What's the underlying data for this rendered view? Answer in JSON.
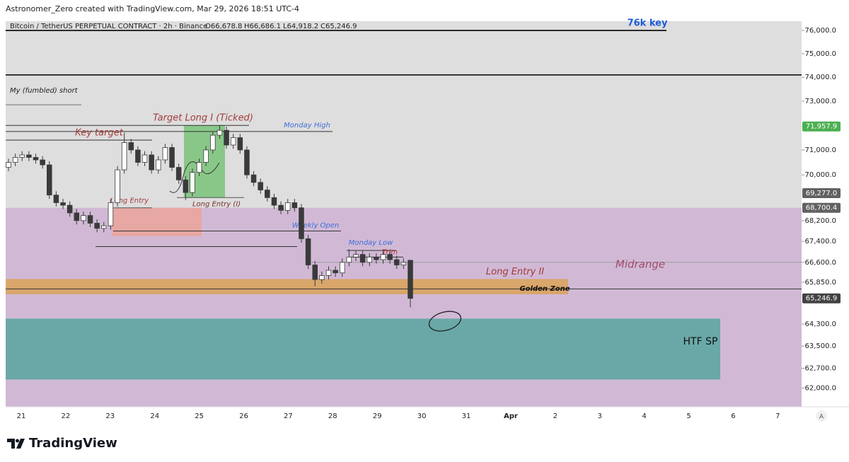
{
  "header": {
    "credit": "Astronomer_Zero created with TradingView.com, Mar 29, 2026 18:51 UTC-4",
    "symbol": "Bitcoin / TetherUS PERPETUAL CONTRACT · 2h · Binance",
    "ohlc": [
      "O66,678.8",
      "H66,686.1",
      "L64,918.2",
      "C65,246.9"
    ],
    "brand": "TradingView"
  },
  "chart_data": {
    "type": "candlestick",
    "log_scale": true,
    "ylim": [
      61340,
      76400
    ],
    "yticks": [
      {
        "value": 76000,
        "label": "76,000.0"
      },
      {
        "value": 75000,
        "label": "75,000.0"
      },
      {
        "value": 74000,
        "label": "74,000.0"
      },
      {
        "value": 73000,
        "label": "73,000.0"
      },
      {
        "value": 71000,
        "label": "71,000.0"
      },
      {
        "value": 70000,
        "label": "70,000.0"
      },
      {
        "value": 68200,
        "label": "68,200.0"
      },
      {
        "value": 67400,
        "label": "67,400.0"
      },
      {
        "value": 66600,
        "label": "66,600.0"
      },
      {
        "value": 65850,
        "label": "65,850.0"
      },
      {
        "value": 64300,
        "label": "64,300.0"
      },
      {
        "value": 63500,
        "label": "63,500.0"
      },
      {
        "value": 62700,
        "label": "62,700.0"
      },
      {
        "value": 62000,
        "label": "62,000.0"
      }
    ],
    "x_labels": [
      "21",
      "22",
      "23",
      "24",
      "25",
      "26",
      "27",
      "28",
      "29",
      "30",
      "31",
      "Apr",
      "2",
      "3",
      "4",
      "5",
      "6",
      "7"
    ],
    "scale_mode": "A",
    "price_labels": [
      {
        "value": 71957.9,
        "label": "71,957.9",
        "color": "#4caf50"
      },
      {
        "value": 69277.0,
        "label": "69,277.0",
        "color": "#616161"
      },
      {
        "value": 68700.4,
        "label": "68,700.4",
        "color": "#616161"
      },
      {
        "value": 65246.9,
        "label": "65,246.9",
        "color": "#424242"
      }
    ],
    "up_color": "#ffffff",
    "down_color": "#3a3a3a",
    "candles": [
      [
        70300,
        70650,
        70150,
        70500
      ],
      [
        70500,
        70850,
        70350,
        70700
      ],
      [
        70700,
        70950,
        70550,
        70800
      ],
      [
        70800,
        70950,
        70550,
        70700
      ],
      [
        70700,
        70850,
        70450,
        70600
      ],
      [
        70600,
        70750,
        70250,
        70400
      ],
      [
        70400,
        70550,
        69050,
        69200
      ],
      [
        69200,
        69350,
        68750,
        68900
      ],
      [
        68900,
        69050,
        68650,
        68800
      ],
      [
        68800,
        68950,
        68350,
        68500
      ],
      [
        68500,
        68650,
        68050,
        68200
      ],
      [
        68200,
        68550,
        68050,
        68400
      ],
      [
        68400,
        68550,
        67950,
        68100
      ],
      [
        68100,
        68250,
        67750,
        67900
      ],
      [
        67900,
        68150,
        67750,
        68000
      ],
      [
        68000,
        69050,
        67850,
        68900
      ],
      [
        68900,
        70350,
        68750,
        70200
      ],
      [
        70200,
        71700,
        70050,
        71300
      ],
      [
        71300,
        71450,
        70850,
        71000
      ],
      [
        71000,
        71150,
        70350,
        70500
      ],
      [
        70500,
        70950,
        70350,
        70800
      ],
      [
        70800,
        70950,
        70050,
        70200
      ],
      [
        70200,
        70750,
        70050,
        70600
      ],
      [
        70600,
        71250,
        70450,
        71100
      ],
      [
        71100,
        71250,
        70150,
        70300
      ],
      [
        70300,
        70450,
        69650,
        69800
      ],
      [
        69800,
        69950,
        69000,
        69300
      ],
      [
        69300,
        70250,
        69150,
        70100
      ],
      [
        70100,
        70650,
        69950,
        70500
      ],
      [
        70500,
        71150,
        70350,
        71000
      ],
      [
        71000,
        71750,
        70850,
        71600
      ],
      [
        71600,
        72000,
        71450,
        71800
      ],
      [
        71800,
        71950,
        71050,
        71200
      ],
      [
        71200,
        71650,
        71050,
        71500
      ],
      [
        71500,
        71650,
        70850,
        71000
      ],
      [
        71000,
        71150,
        69850,
        70000
      ],
      [
        70000,
        70150,
        69550,
        69700
      ],
      [
        69700,
        69850,
        69250,
        69400
      ],
      [
        69400,
        69550,
        68950,
        69100
      ],
      [
        69100,
        69250,
        68650,
        68800
      ],
      [
        68800,
        68950,
        68450,
        68600
      ],
      [
        68600,
        69050,
        68450,
        68900
      ],
      [
        68900,
        69050,
        68550,
        68700
      ],
      [
        68700,
        68850,
        67350,
        67500
      ],
      [
        67500,
        67650,
        66350,
        66500
      ],
      [
        66500,
        66650,
        65700,
        65950
      ],
      [
        65950,
        66250,
        65800,
        66100
      ],
      [
        66100,
        66450,
        65950,
        66300
      ],
      [
        66300,
        66450,
        66050,
        66200
      ],
      [
        66200,
        66750,
        66050,
        66600
      ],
      [
        66600,
        67100,
        66450,
        66800
      ],
      [
        66800,
        67050,
        66650,
        66900
      ],
      [
        66900,
        67050,
        66450,
        66600
      ],
      [
        66600,
        66950,
        66450,
        66800
      ],
      [
        66800,
        66950,
        66550,
        66700
      ],
      [
        66700,
        67050,
        66550,
        66900
      ],
      [
        66900,
        67050,
        66550,
        66700
      ],
      [
        66700,
        66850,
        66350,
        66500
      ],
      [
        66500,
        66750,
        66350,
        66600
      ],
      [
        66678.8,
        66686.1,
        64918.2,
        65246.9
      ]
    ],
    "zones": [
      {
        "label": "Midrange",
        "top": 68700,
        "bottom": 61000,
        "color": "#d1b9d6"
      },
      {
        "top": 72000,
        "bottom": 69100,
        "color": "#7fc47f"
      },
      {
        "top": 68700,
        "bottom": 67600,
        "color": "#e7a7a2"
      },
      {
        "label": "Golden Zone",
        "top": 65970,
        "bottom": 65400,
        "color": "#d9a66b"
      },
      {
        "label": "HTF SP",
        "top": 64500,
        "bottom": 62300,
        "color": "#6aa8a8"
      }
    ],
    "levels": [
      {
        "label": "76k key",
        "price": 76000,
        "color": "#000000"
      },
      {
        "price": 74100,
        "color": "#000000"
      },
      {
        "label": "My (fumbled) short",
        "price": 72850,
        "color": "#757575"
      },
      {
        "label": "Target Long I (Ticked)",
        "price": 72000,
        "color": "#333333"
      },
      {
        "label": "Monday High",
        "price": 71750,
        "color": "#333333"
      },
      {
        "label": "Key target",
        "price": 71400,
        "color": "#333333"
      },
      {
        "label": "Long Entry (I)",
        "price": 69100,
        "color": "#555555"
      },
      {
        "label": "Long Entry",
        "price": 68700,
        "color": "#555555"
      },
      {
        "label": "Weekly Open",
        "price": 67800,
        "color": "#333333"
      },
      {
        "price": 67200,
        "color": "#333333"
      },
      {
        "label": "Monday Low",
        "price": 67050,
        "color": "#333333"
      },
      {
        "label": "Trim",
        "price": 66800,
        "color": "#333333"
      },
      {
        "label": "Long Entry II",
        "price": 65970,
        "color": "#d9a66b"
      },
      {
        "price": 65600,
        "color": "#333333"
      },
      {
        "price": 66600,
        "color": "#9e9e9e"
      }
    ]
  }
}
